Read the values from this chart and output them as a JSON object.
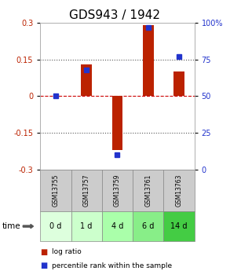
{
  "title": "GDS943 / 1942",
  "samples": [
    "GSM13755",
    "GSM13757",
    "GSM13759",
    "GSM13761",
    "GSM13763"
  ],
  "time_labels": [
    "0 d",
    "1 d",
    "4 d",
    "6 d",
    "14 d"
  ],
  "log_ratios": [
    0.0,
    0.13,
    -0.22,
    0.29,
    0.1
  ],
  "percentile_ranks": [
    50,
    68,
    10,
    97,
    77
  ],
  "ylim_left": [
    -0.3,
    0.3
  ],
  "ylim_right": [
    0,
    100
  ],
  "yticks_left": [
    -0.3,
    -0.15,
    0,
    0.15,
    0.3
  ],
  "ytick_labels_left": [
    "-0.3",
    "-0.15",
    "0",
    "0.15",
    "0.3"
  ],
  "yticks_right": [
    0,
    25,
    50,
    75,
    100
  ],
  "ytick_labels_right": [
    "0",
    "25",
    "50",
    "75",
    "100%"
  ],
  "bar_color": "#bb2200",
  "dot_color": "#2233cc",
  "zero_line_color": "#cc0000",
  "grid_color": "#555555",
  "bg_color": "#ffffff",
  "header_bg": "#cccccc",
  "time_bg_colors": [
    "#ddffd d",
    "#ddffdd",
    "#bbffbb",
    "#88ee88",
    "#44cc44"
  ],
  "title_fontsize": 11,
  "tick_fontsize": 7,
  "bar_width": 0.35
}
